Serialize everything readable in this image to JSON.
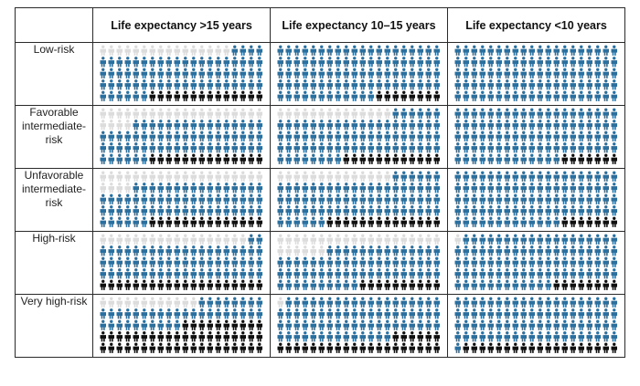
{
  "colors": {
    "not_needed": "#dcdcdc",
    "no_benefit": "#2b6f9e",
    "benefit": "#0f0f0f"
  },
  "chart_data": {
    "type": "icon-array",
    "columns": [
      "Life expectancy >15 years",
      "Life expectancy 10–15 years",
      "Life expectancy <10 years"
    ],
    "rows": [
      {
        "label": "Low-risk",
        "cells": [
          {
            "grey": 16,
            "blue": 70,
            "black": 14
          },
          {
            "grey": 0,
            "blue": 92,
            "black": 8
          },
          {
            "grey": 0,
            "blue": 100,
            "black": 0
          }
        ]
      },
      {
        "label": "Favorable intermediate-risk",
        "cells": [
          {
            "grey": 24,
            "blue": 62,
            "black": 14
          },
          {
            "grey": 14,
            "blue": 74,
            "black": 12
          },
          {
            "grey": 0,
            "blue": 93,
            "black": 7
          }
        ]
      },
      {
        "label": "Unfavorable intermediate-risk",
        "cells": [
          {
            "grey": 24,
            "blue": 62,
            "black": 14
          },
          {
            "grey": 14,
            "blue": 72,
            "black": 14
          },
          {
            "grey": 0,
            "blue": 93,
            "black": 7
          }
        ]
      },
      {
        "label": "High-risk",
        "cells": [
          {
            "grey": 18,
            "blue": 62,
            "black": 20
          },
          {
            "grey": 26,
            "blue": 64,
            "black": 10
          },
          {
            "grey": 1,
            "blue": 91,
            "black": 8
          }
        ]
      },
      {
        "label": "Very high-risk",
        "cells": [
          {
            "grey": 12,
            "blue": 38,
            "black": 50
          },
          {
            "grey": 1,
            "blue": 73,
            "black": 26
          },
          {
            "grey": 0,
            "blue": 81,
            "black": 19
          }
        ]
      }
    ]
  }
}
